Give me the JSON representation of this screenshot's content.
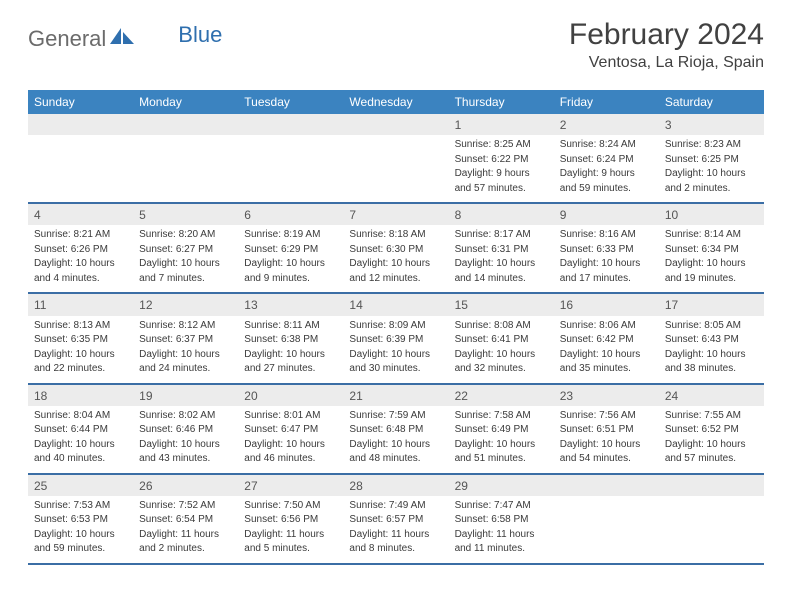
{
  "brand": {
    "text_general": "General",
    "text_blue": "Blue",
    "color_general": "#6b6b6b",
    "color_blue": "#2f6fae",
    "icon_color": "#2f6fae"
  },
  "header": {
    "month_title": "February 2024",
    "location": "Ventosa, La Rioja, Spain"
  },
  "style": {
    "header_bg": "#3b83c0",
    "week_border": "#3b6ea5",
    "daynum_bg": "#ececec"
  },
  "weekdays": [
    "Sunday",
    "Monday",
    "Tuesday",
    "Wednesday",
    "Thursday",
    "Friday",
    "Saturday"
  ],
  "weeks": [
    [
      null,
      null,
      null,
      null,
      {
        "n": "1",
        "sr": "Sunrise: 8:25 AM",
        "ss": "Sunset: 6:22 PM",
        "d1": "Daylight: 9 hours",
        "d2": "and 57 minutes."
      },
      {
        "n": "2",
        "sr": "Sunrise: 8:24 AM",
        "ss": "Sunset: 6:24 PM",
        "d1": "Daylight: 9 hours",
        "d2": "and 59 minutes."
      },
      {
        "n": "3",
        "sr": "Sunrise: 8:23 AM",
        "ss": "Sunset: 6:25 PM",
        "d1": "Daylight: 10 hours",
        "d2": "and 2 minutes."
      }
    ],
    [
      {
        "n": "4",
        "sr": "Sunrise: 8:21 AM",
        "ss": "Sunset: 6:26 PM",
        "d1": "Daylight: 10 hours",
        "d2": "and 4 minutes."
      },
      {
        "n": "5",
        "sr": "Sunrise: 8:20 AM",
        "ss": "Sunset: 6:27 PM",
        "d1": "Daylight: 10 hours",
        "d2": "and 7 minutes."
      },
      {
        "n": "6",
        "sr": "Sunrise: 8:19 AM",
        "ss": "Sunset: 6:29 PM",
        "d1": "Daylight: 10 hours",
        "d2": "and 9 minutes."
      },
      {
        "n": "7",
        "sr": "Sunrise: 8:18 AM",
        "ss": "Sunset: 6:30 PM",
        "d1": "Daylight: 10 hours",
        "d2": "and 12 minutes."
      },
      {
        "n": "8",
        "sr": "Sunrise: 8:17 AM",
        "ss": "Sunset: 6:31 PM",
        "d1": "Daylight: 10 hours",
        "d2": "and 14 minutes."
      },
      {
        "n": "9",
        "sr": "Sunrise: 8:16 AM",
        "ss": "Sunset: 6:33 PM",
        "d1": "Daylight: 10 hours",
        "d2": "and 17 minutes."
      },
      {
        "n": "10",
        "sr": "Sunrise: 8:14 AM",
        "ss": "Sunset: 6:34 PM",
        "d1": "Daylight: 10 hours",
        "d2": "and 19 minutes."
      }
    ],
    [
      {
        "n": "11",
        "sr": "Sunrise: 8:13 AM",
        "ss": "Sunset: 6:35 PM",
        "d1": "Daylight: 10 hours",
        "d2": "and 22 minutes."
      },
      {
        "n": "12",
        "sr": "Sunrise: 8:12 AM",
        "ss": "Sunset: 6:37 PM",
        "d1": "Daylight: 10 hours",
        "d2": "and 24 minutes."
      },
      {
        "n": "13",
        "sr": "Sunrise: 8:11 AM",
        "ss": "Sunset: 6:38 PM",
        "d1": "Daylight: 10 hours",
        "d2": "and 27 minutes."
      },
      {
        "n": "14",
        "sr": "Sunrise: 8:09 AM",
        "ss": "Sunset: 6:39 PM",
        "d1": "Daylight: 10 hours",
        "d2": "and 30 minutes."
      },
      {
        "n": "15",
        "sr": "Sunrise: 8:08 AM",
        "ss": "Sunset: 6:41 PM",
        "d1": "Daylight: 10 hours",
        "d2": "and 32 minutes."
      },
      {
        "n": "16",
        "sr": "Sunrise: 8:06 AM",
        "ss": "Sunset: 6:42 PM",
        "d1": "Daylight: 10 hours",
        "d2": "and 35 minutes."
      },
      {
        "n": "17",
        "sr": "Sunrise: 8:05 AM",
        "ss": "Sunset: 6:43 PM",
        "d1": "Daylight: 10 hours",
        "d2": "and 38 minutes."
      }
    ],
    [
      {
        "n": "18",
        "sr": "Sunrise: 8:04 AM",
        "ss": "Sunset: 6:44 PM",
        "d1": "Daylight: 10 hours",
        "d2": "and 40 minutes."
      },
      {
        "n": "19",
        "sr": "Sunrise: 8:02 AM",
        "ss": "Sunset: 6:46 PM",
        "d1": "Daylight: 10 hours",
        "d2": "and 43 minutes."
      },
      {
        "n": "20",
        "sr": "Sunrise: 8:01 AM",
        "ss": "Sunset: 6:47 PM",
        "d1": "Daylight: 10 hours",
        "d2": "and 46 minutes."
      },
      {
        "n": "21",
        "sr": "Sunrise: 7:59 AM",
        "ss": "Sunset: 6:48 PM",
        "d1": "Daylight: 10 hours",
        "d2": "and 48 minutes."
      },
      {
        "n": "22",
        "sr": "Sunrise: 7:58 AM",
        "ss": "Sunset: 6:49 PM",
        "d1": "Daylight: 10 hours",
        "d2": "and 51 minutes."
      },
      {
        "n": "23",
        "sr": "Sunrise: 7:56 AM",
        "ss": "Sunset: 6:51 PM",
        "d1": "Daylight: 10 hours",
        "d2": "and 54 minutes."
      },
      {
        "n": "24",
        "sr": "Sunrise: 7:55 AM",
        "ss": "Sunset: 6:52 PM",
        "d1": "Daylight: 10 hours",
        "d2": "and 57 minutes."
      }
    ],
    [
      {
        "n": "25",
        "sr": "Sunrise: 7:53 AM",
        "ss": "Sunset: 6:53 PM",
        "d1": "Daylight: 10 hours",
        "d2": "and 59 minutes."
      },
      {
        "n": "26",
        "sr": "Sunrise: 7:52 AM",
        "ss": "Sunset: 6:54 PM",
        "d1": "Daylight: 11 hours",
        "d2": "and 2 minutes."
      },
      {
        "n": "27",
        "sr": "Sunrise: 7:50 AM",
        "ss": "Sunset: 6:56 PM",
        "d1": "Daylight: 11 hours",
        "d2": "and 5 minutes."
      },
      {
        "n": "28",
        "sr": "Sunrise: 7:49 AM",
        "ss": "Sunset: 6:57 PM",
        "d1": "Daylight: 11 hours",
        "d2": "and 8 minutes."
      },
      {
        "n": "29",
        "sr": "Sunrise: 7:47 AM",
        "ss": "Sunset: 6:58 PM",
        "d1": "Daylight: 11 hours",
        "d2": "and 11 minutes."
      },
      null,
      null
    ]
  ]
}
